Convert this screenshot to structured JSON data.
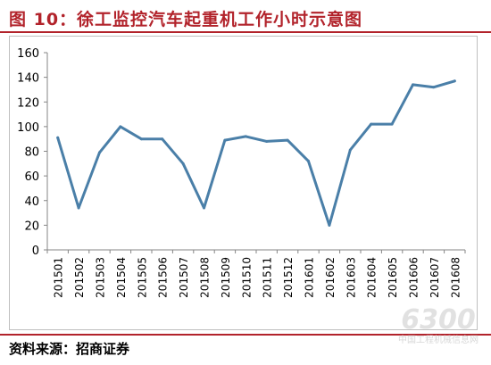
{
  "figure": {
    "title": "图 10：徐工监控汽车起重机工作小时示意图",
    "source": "资料来源：招商证券"
  },
  "chart_data": {
    "type": "line",
    "title": "",
    "xlabel": "",
    "ylabel": "",
    "categories": [
      "201501",
      "201502",
      "201503",
      "201504",
      "201505",
      "201506",
      "201507",
      "201508",
      "201509",
      "201510",
      "201511",
      "201512",
      "201601",
      "201602",
      "201603",
      "201604",
      "201605",
      "201606",
      "201607",
      "201608"
    ],
    "series": [
      {
        "name": "",
        "values": [
          91,
          34,
          79,
          100,
          90,
          90,
          70,
          34,
          89,
          92,
          88,
          89,
          72,
          20,
          81,
          102,
          102,
          134,
          132,
          137
        ],
        "color": "#4a7fa8"
      }
    ],
    "ylim": [
      0,
      160
    ],
    "yticks": [
      0,
      20,
      40,
      60,
      80,
      100,
      120,
      140,
      160
    ],
    "grid": false,
    "legend": "none"
  },
  "watermark": {
    "number": "6300",
    "text": "中国工程机械信息网"
  }
}
